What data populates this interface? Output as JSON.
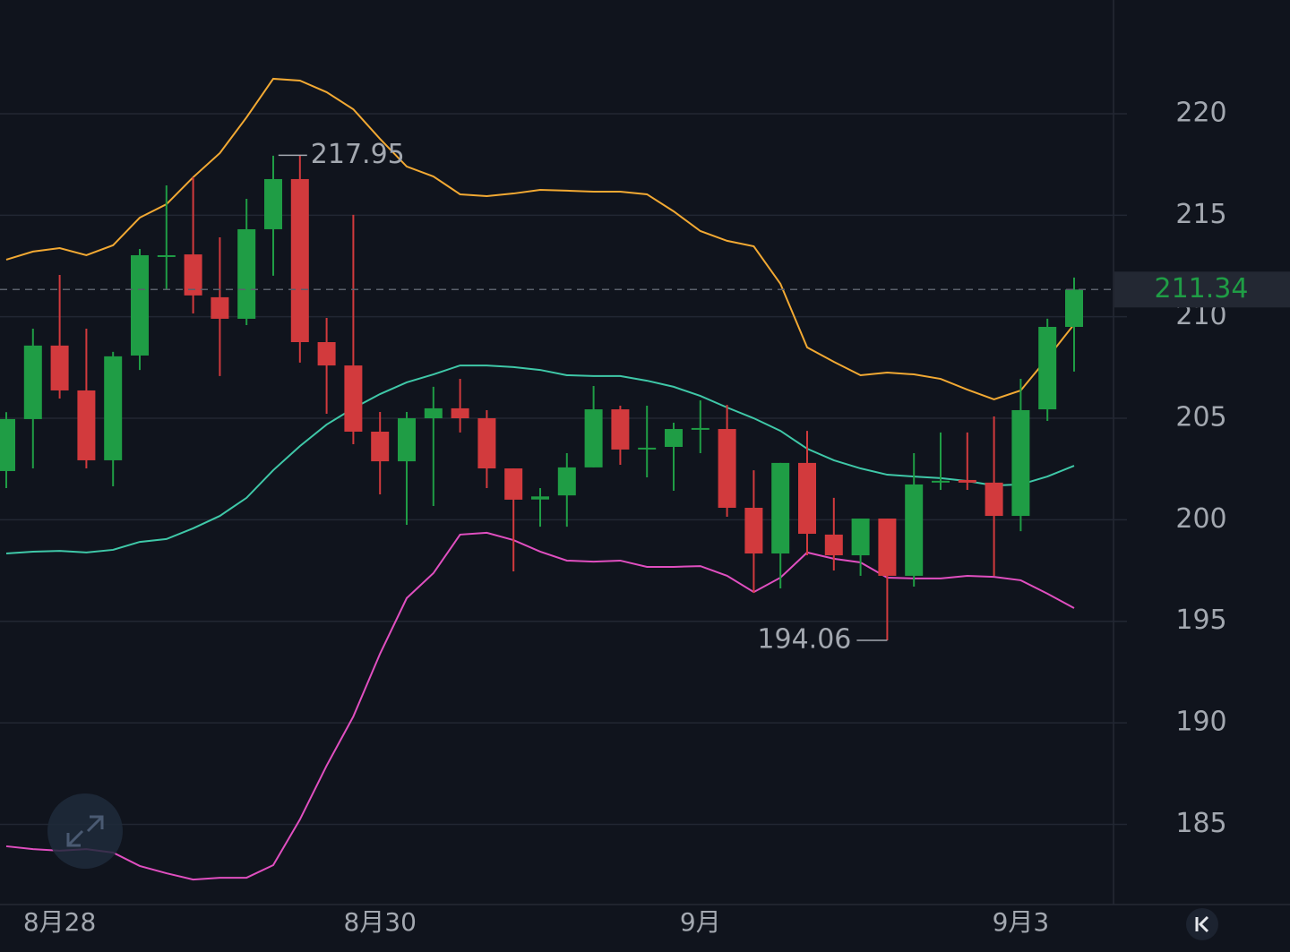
{
  "chart_data": {
    "type": "candlestick",
    "categories": [
      null,
      null,
      "8月28",
      null,
      null,
      null,
      null,
      null,
      null,
      null,
      null,
      null,
      null,
      null,
      "8月30",
      null,
      null,
      null,
      null,
      null,
      null,
      null,
      null,
      null,
      null,
      null,
      "9月",
      null,
      null,
      null,
      null,
      null,
      null,
      null,
      null,
      null,
      null,
      null,
      "9月3",
      null,
      null
    ],
    "open": [
      202.4,
      204.96,
      208.58,
      206.37,
      202.93,
      208.09,
      212.98,
      213.07,
      210.96,
      209.9,
      214.31,
      216.78,
      208.75,
      207.6,
      204.34,
      202.88,
      205.0,
      205.49,
      205.0,
      202.53,
      201.0,
      201.2,
      202.58,
      205.44,
      203.5,
      203.59,
      204.5,
      204.47,
      200.59,
      198.34,
      202.8,
      199.27,
      198.25,
      200.06,
      197.24,
      201.85,
      201.96,
      201.83,
      200.19,
      205.44,
      209.5
    ],
    "high": [
      205.3,
      209.41,
      212.06,
      209.41,
      208.27,
      213.34,
      216.47,
      216.87,
      213.91,
      215.81,
      217.93,
      217.95,
      209.94,
      215.02,
      205.31,
      205.31,
      206.55,
      206.94,
      205.4,
      202.53,
      201.56,
      203.28,
      206.59,
      205.62,
      205.62,
      204.78,
      205.88,
      205.66,
      202.44,
      202.8,
      204.38,
      201.08,
      200.06,
      200.06,
      203.28,
      204.3,
      204.3,
      205.09,
      206.94,
      209.9,
      211.93
    ],
    "low": [
      201.56,
      202.53,
      205.97,
      202.53,
      201.65,
      207.38,
      211.35,
      210.16,
      207.08,
      209.59,
      212.02,
      207.74,
      205.22,
      203.72,
      201.25,
      199.75,
      200.68,
      204.3,
      201.56,
      197.46,
      199.66,
      199.66,
      202.58,
      202.71,
      202.09,
      201.43,
      203.28,
      200.15,
      196.4,
      196.62,
      198.25,
      197.5,
      197.24,
      194.06,
      196.71,
      201.47,
      201.47,
      197.24,
      199.44,
      204.87,
      207.3
    ],
    "close": [
      204.96,
      208.58,
      206.37,
      202.93,
      208.05,
      213.03,
      213.03,
      211.05,
      209.9,
      214.31,
      216.78,
      208.75,
      207.6,
      204.34,
      202.88,
      205.0,
      205.49,
      205.0,
      202.53,
      200.99,
      201.15,
      202.58,
      205.44,
      203.46,
      203.55,
      204.47,
      204.52,
      200.59,
      198.34,
      202.8,
      199.31,
      198.25,
      200.06,
      197.24,
      201.74,
      201.92,
      201.83,
      200.19,
      205.4,
      209.5,
      211.34
    ],
    "up_color": "#1f9d45",
    "down_color": "#d23a3d",
    "lines": [
      {
        "color": "#f2a933",
        "values": [
          212.81,
          213.21,
          213.38,
          213.03,
          213.52,
          214.88,
          215.54,
          216.87,
          218.06,
          219.82,
          221.72,
          221.63,
          221.06,
          220.22,
          218.76,
          217.4,
          216.91,
          216.03,
          215.94,
          216.07,
          216.25,
          216.21,
          216.16,
          216.16,
          216.03,
          215.19,
          214.22,
          213.74,
          213.47,
          211.62,
          208.49,
          207.78,
          207.12,
          207.25,
          207.16,
          206.94,
          206.41,
          205.93,
          206.37,
          207.96,
          209.63
        ]
      },
      {
        "color": "#3fc8a8",
        "values": [
          198.34,
          198.43,
          198.47,
          198.39,
          198.52,
          198.91,
          199.05,
          199.58,
          200.19,
          201.08,
          202.44,
          203.63,
          204.69,
          205.49,
          206.19,
          206.77,
          207.16,
          207.6,
          207.6,
          207.52,
          207.38,
          207.12,
          207.08,
          207.08,
          206.85,
          206.55,
          206.1,
          205.53,
          205.0,
          204.38,
          203.5,
          202.93,
          202.53,
          202.22,
          202.13,
          202.05,
          201.91,
          201.69,
          201.74,
          202.13,
          202.66
        ]
      },
      {
        "color": "#e04fc0",
        "values": [
          183.92,
          183.78,
          183.7,
          183.78,
          183.61,
          182.95,
          182.59,
          182.28,
          182.37,
          182.37,
          182.99,
          185.24,
          187.89,
          190.31,
          193.4,
          196.14,
          197.37,
          199.27,
          199.36,
          199.0,
          198.43,
          197.99,
          197.94,
          197.99,
          197.68,
          197.68,
          197.72,
          197.24,
          196.44,
          197.15,
          198.39,
          198.08,
          197.9,
          197.15,
          197.11,
          197.11,
          197.24,
          197.19,
          197.02,
          196.36,
          195.65
        ]
      }
    ],
    "ylim": [
      181.05,
      225.6
    ],
    "yticks": [
      185,
      190,
      195,
      200,
      205,
      210,
      215,
      220
    ],
    "grid": true
  }
}
